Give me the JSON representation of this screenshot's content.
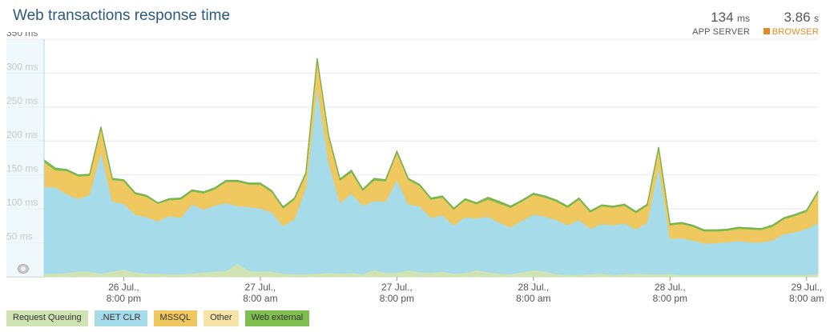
{
  "header": {
    "title": "Web transactions response time",
    "chevron": "chevron-down-icon",
    "app_server": {
      "value": "134",
      "unit": "ms",
      "label": "APP SERVER"
    },
    "browser": {
      "value": "3.86",
      "unit": "s",
      "label": "BROWSER"
    }
  },
  "chart_data": {
    "type": "area",
    "stacked": true,
    "title": "Web transactions response time",
    "ylim": [
      0,
      350
    ],
    "yticks": [
      0,
      50,
      100,
      150,
      200,
      250,
      300,
      350
    ],
    "ytick_labels": [
      "",
      "50 ms",
      "100 ms",
      "150 ms",
      "200 ms",
      "250 ms",
      "300 ms",
      "350 ms"
    ],
    "grid": true,
    "x_tick_labels": [
      {
        "i": 7,
        "label": "26 Jul.,\n8:00 pm"
      },
      {
        "i": 19,
        "label": "27 Jul.,\n8:00 am"
      },
      {
        "i": 31,
        "label": "27 Jul.,\n8:00 pm"
      },
      {
        "i": 43,
        "label": "28 Jul.,\n8:00 am"
      },
      {
        "i": 55,
        "label": "28 Jul.,\n8:00 pm"
      },
      {
        "i": 67,
        "label": "29 Jul.,\n8:00 am"
      }
    ],
    "legend_position": "bottom-left",
    "series": [
      {
        "name": "Request Queuing",
        "color": "#cfe3b3",
        "values": [
          5,
          5,
          6,
          8,
          8,
          5,
          8,
          11,
          7,
          5,
          5,
          4,
          4,
          5,
          7,
          8,
          9,
          20,
          9,
          8,
          8,
          5,
          4,
          4,
          5,
          6,
          5,
          6,
          4,
          10,
          6,
          6,
          10,
          7,
          6,
          8,
          5,
          6,
          10,
          7,
          5,
          4,
          7,
          10,
          8,
          4,
          3,
          3,
          4,
          5,
          3,
          4,
          5,
          4,
          4,
          4,
          3,
          3,
          3,
          3,
          3,
          3,
          3,
          3,
          3,
          3,
          3,
          3,
          4
        ]
      },
      {
        "name": ".NET CLR",
        "color": "#a6dbea",
        "values": [
          127,
          127,
          116,
          107,
          113,
          179,
          103,
          97,
          85,
          83,
          77,
          86,
          83,
          102,
          92,
          97,
          100,
          84,
          94,
          93,
          87,
          70,
          81,
          127,
          275,
          163,
          104,
          117,
          101,
          102,
          105,
          137,
          97,
          97,
          81,
          83,
          71,
          82,
          76,
          82,
          75,
          69,
          76,
          82,
          81,
          80,
          73,
          81,
          67,
          73,
          73,
          75,
          65,
          76,
          160,
          52,
          54,
          51,
          46,
          47,
          48,
          50,
          48,
          48,
          51,
          60,
          63,
          68,
          75
        ]
      },
      {
        "name": "MSSQL",
        "color": "#f0c860",
        "values": [
          37,
          25,
          34,
          33,
          28,
          35,
          32,
          33,
          30,
          30,
          26,
          23,
          27,
          19,
          24,
          24,
          31,
          36,
          33,
          35,
          30,
          26,
          29,
          20,
          40,
          38,
          33,
          31,
          22,
          30,
          30,
          40,
          36,
          30,
          27,
          26,
          23,
          25,
          21,
          25,
          28,
          29,
          28,
          29,
          28,
          27,
          26,
          30,
          24,
          26,
          26,
          26,
          24,
          25,
          25,
          20,
          21,
          20,
          18,
          17,
          17,
          18,
          19,
          18,
          20,
          22,
          24,
          25,
          45
        ]
      },
      {
        "name": "Other",
        "color": "#f5e3a8",
        "values": [
          0,
          0,
          0,
          0,
          0,
          0,
          0,
          0,
          0,
          0,
          0,
          0,
          0,
          0,
          0,
          0,
          0,
          0,
          0,
          0,
          0,
          0,
          0,
          0,
          0,
          0,
          0,
          0,
          0,
          0,
          0,
          0,
          0,
          0,
          0,
          0,
          0,
          0,
          0,
          0,
          0,
          0,
          0,
          0,
          0,
          0,
          0,
          0,
          0,
          0,
          0,
          0,
          0,
          0,
          0,
          0,
          0,
          0,
          0,
          0,
          0,
          0,
          0,
          0,
          0,
          0,
          0,
          0,
          0
        ]
      },
      {
        "name": "Web external",
        "color": "#7fbf50",
        "values": [
          3,
          3,
          2,
          2,
          2,
          2,
          2,
          2,
          2,
          2,
          1,
          2,
          2,
          2,
          2,
          2,
          2,
          2,
          2,
          2,
          2,
          2,
          2,
          2,
          2,
          2,
          2,
          3,
          2,
          3,
          2,
          2,
          2,
          2,
          2,
          2,
          2,
          2,
          2,
          3,
          3,
          2,
          2,
          2,
          2,
          2,
          2,
          2,
          2,
          2,
          2,
          2,
          2,
          2,
          2,
          2,
          2,
          2,
          2,
          2,
          2,
          2,
          2,
          2,
          2,
          2,
          2,
          2,
          2
        ]
      }
    ]
  },
  "legend": [
    {
      "label": "Request Queuing",
      "color": "#cfe3b3"
    },
    {
      "label": ".NET CLR",
      "color": "#a6dbea"
    },
    {
      "label": "MSSQL",
      "color": "#f0c860"
    },
    {
      "label": "Other",
      "color": "#f5e3a8"
    },
    {
      "label": "Web external",
      "color": "#7fbf50"
    }
  ]
}
